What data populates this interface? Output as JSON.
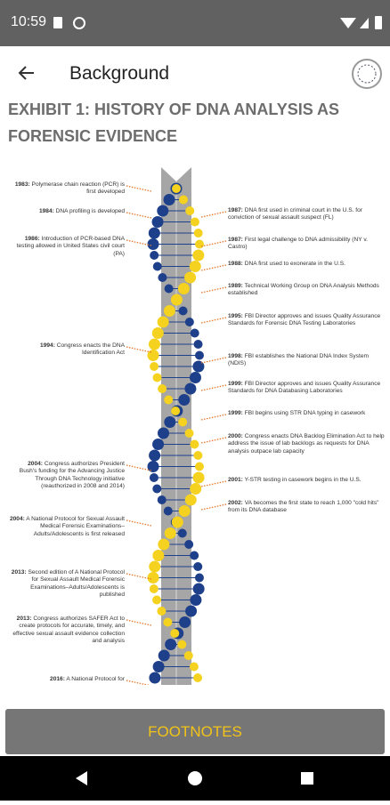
{
  "status_bar": {
    "time": "10:59"
  },
  "app_bar": {
    "title": "Background"
  },
  "heading": "EXHIBIT 1: HISTORY OF DNA ANALYSIS AS FORENSIC EVIDENCE",
  "timeline": {
    "left": [
      {
        "year": "1983:",
        "text": "Polymerase chain reaction (PCR) is first developed"
      },
      {
        "year": "1984:",
        "text": "DNA profiling is developed"
      },
      {
        "year": "1986:",
        "text": "Introduction of PCR-based DNA testing allowed in United States civil court (PA)"
      },
      {
        "year": "1994:",
        "text": "Congress enacts the DNA Identification Act"
      },
      {
        "year": "2004:",
        "text": "Congress authorizes President Bush's funding for the Advancing Justice Through DNA Technology initiative (reauthorized in 2008 and 2014)"
      },
      {
        "year": "2004:",
        "text": "A National Protocol for Sexual Assault Medical Forensic Examinations–Adults/Adolescents is first released"
      },
      {
        "year": "2013:",
        "text": "Second edition of A National Protocol for Sexual Assault Medical Forensic Examinations–Adults/Adolescents is published"
      },
      {
        "year": "2013:",
        "text": "Congress authorizes SAFER Act to create protocols for accurate, timely, and effective sexual assault evidence collection and analysis"
      },
      {
        "year": "2016:",
        "text": "A National Protocol for"
      }
    ],
    "right": [
      {
        "year": "1987:",
        "text": "DNA first used in criminal court in the U.S. for conviction of sexual assault suspect (FL)"
      },
      {
        "year": "1987:",
        "text": "First legal challenge to DNA admissibility (NY v. Castro)"
      },
      {
        "year": "1988:",
        "text": "DNA first used to exonerate in the U.S."
      },
      {
        "year": "1989:",
        "text": "Technical Working Group on DNA Analysis Methods established"
      },
      {
        "year": "1995:",
        "text": "FBI Director approves and issues Quality Assurance Standards for Forensic DNA Testing Laboratories"
      },
      {
        "year": "1998:",
        "text": "FBI establishes the National DNA Index System (NDIS)"
      },
      {
        "year": "1999:",
        "text": "FBI Director approves and issues Quality Assurance Standards for DNA Databasing Laboratories"
      },
      {
        "year": "1999:",
        "text": "FBI begins using STR DNA typing in casework"
      },
      {
        "year": "2000:",
        "text": "Congress enacts DNA Backlog Elimination Act to help address the issue of lab backlogs as requests for DNA analysis outpace lab capacity"
      },
      {
        "year": "2001:",
        "text": "Y-STR testing in casework begins in the U.S."
      },
      {
        "year": "2002:",
        "text": "VA becomes the first state to reach 1,000 \"cold hits\" from its DNA database"
      }
    ]
  },
  "button": {
    "label": "FOOTNOTES"
  }
}
